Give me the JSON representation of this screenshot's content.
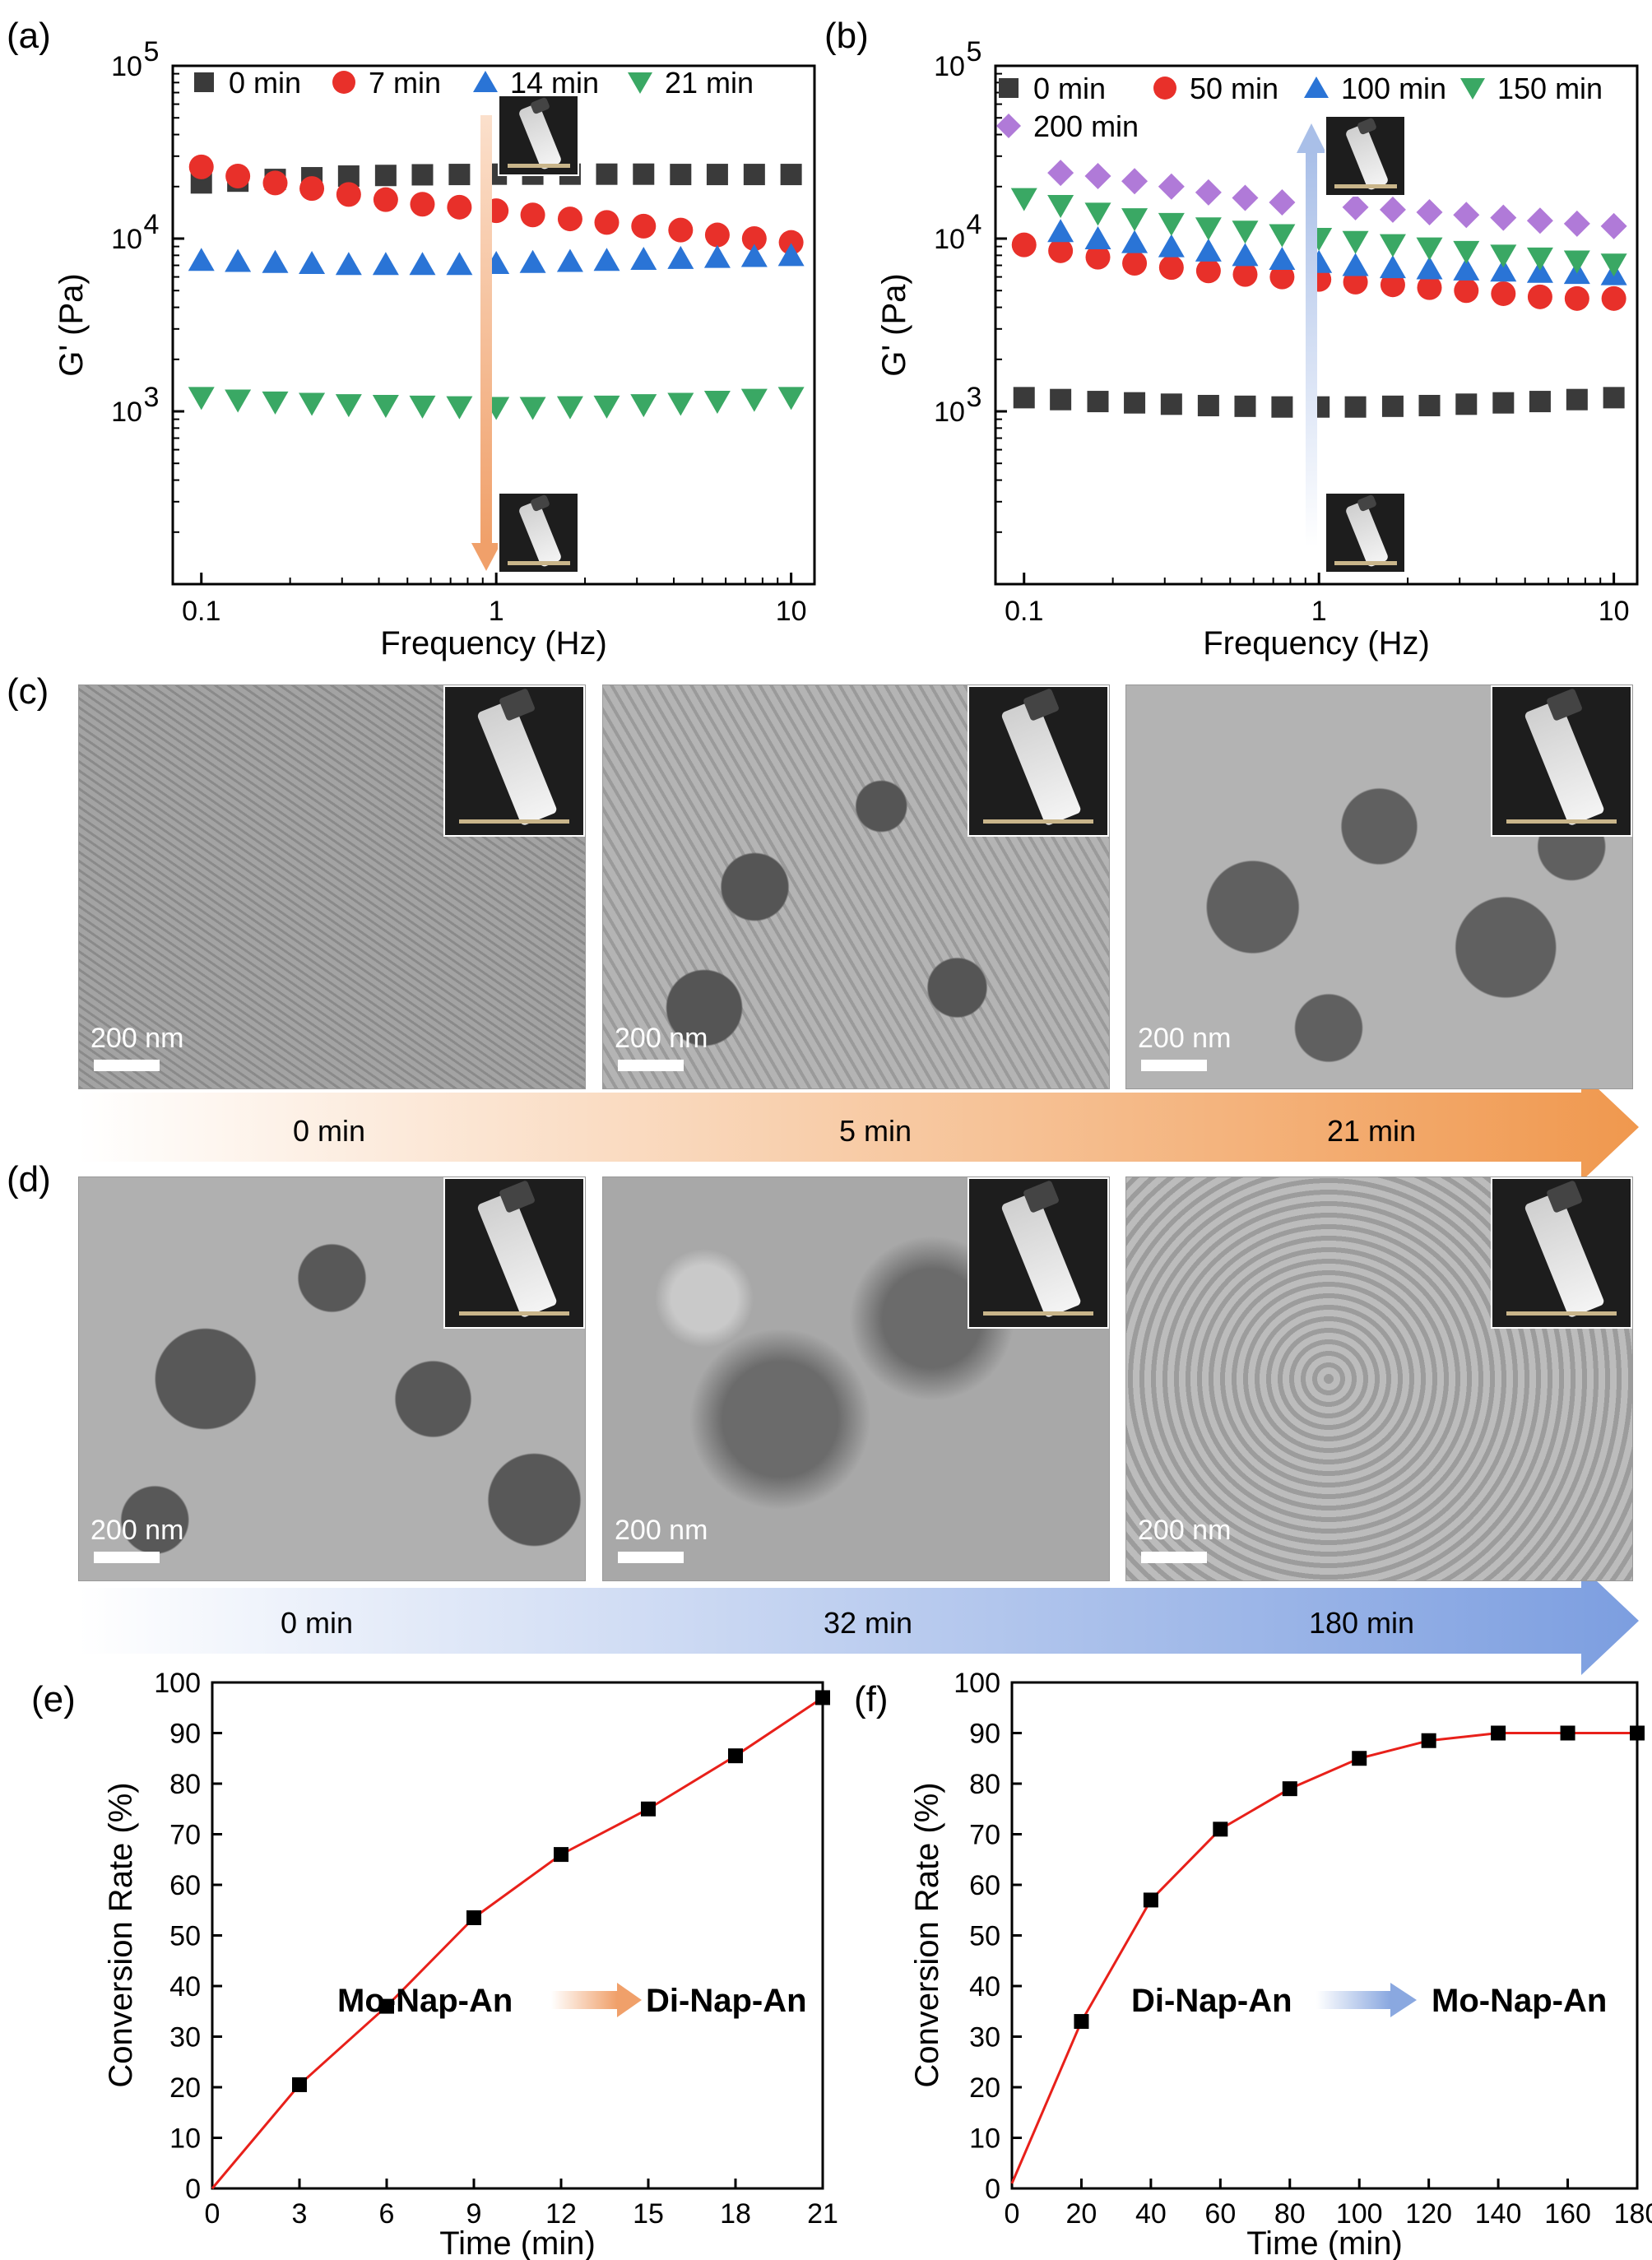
{
  "panels": {
    "a": {
      "letter": "(a)",
      "xlabel": "Frequency (Hz)",
      "ylabel": "G' (Pa)",
      "xticks": [
        "0.1",
        "1",
        "10"
      ],
      "yticks": [
        {
          "base": "10",
          "exp": "3"
        },
        {
          "base": "10",
          "exp": "4"
        },
        {
          "base": "10",
          "exp": "5"
        }
      ],
      "legend": [
        "0 min",
        "7 min",
        "14 min",
        "21 min"
      ]
    },
    "b": {
      "letter": "(b)",
      "xlabel": "Frequency (Hz)",
      "ylabel": "G' (Pa)",
      "xticks": [
        "0.1",
        "1",
        "10"
      ],
      "yticks": [
        {
          "base": "10",
          "exp": "3"
        },
        {
          "base": "10",
          "exp": "4"
        },
        {
          "base": "10",
          "exp": "5"
        }
      ],
      "legend": [
        "0 min",
        "50 min",
        "100 min",
        "150 min",
        "200 min"
      ]
    },
    "c": {
      "letter": "(c)",
      "scale": "200 nm",
      "timeline": [
        "0 min",
        "5 min",
        "21 min"
      ]
    },
    "d": {
      "letter": "(d)",
      "scale": "200 nm",
      "timeline": [
        "0 min",
        "32 min",
        "180 min"
      ]
    },
    "e": {
      "letter": "(e)",
      "xlabel": "Time (min)",
      "ylabel": "Conversion Rate (%)",
      "xticks": [
        "0",
        "3",
        "6",
        "9",
        "12",
        "15",
        "18",
        "21"
      ],
      "yticks": [
        "0",
        "10",
        "20",
        "30",
        "40",
        "50",
        "60",
        "70",
        "80",
        "90",
        "100"
      ],
      "annot_from": "Mo-Nap-An",
      "annot_to": "Di-Nap-An"
    },
    "f": {
      "letter": "(f)",
      "xlabel": "Time (min)",
      "ylabel": "Conversion Rate (%)",
      "xticks": [
        "0",
        "20",
        "40",
        "60",
        "80",
        "100",
        "120",
        "140",
        "160",
        "180"
      ],
      "yticks": [
        "0",
        "10",
        "20",
        "30",
        "40",
        "50",
        "60",
        "70",
        "80",
        "90",
        "100"
      ],
      "annot_from": "Di-Nap-An",
      "annot_to": "Mo-Nap-An"
    }
  },
  "colors": {
    "gray": "#3a3a3a",
    "red": "#e8302a",
    "blue": "#2a74d6",
    "green": "#3aa864",
    "purple": "#b07ad8",
    "orange_arrow": "#f0a06a",
    "blue_arrow": "#8aa8e0",
    "line_red": "#e8201a"
  },
  "chart_data": [
    {
      "panel": "a",
      "type": "scatter",
      "xscale": "log",
      "yscale": "log",
      "xlim": [
        0.08,
        12
      ],
      "ylim": [
        100,
        100000
      ],
      "x": [
        0.1,
        0.133,
        0.178,
        0.237,
        0.316,
        0.422,
        0.562,
        0.75,
        1.0,
        1.33,
        1.78,
        2.37,
        3.16,
        4.22,
        5.62,
        7.5,
        10.0
      ],
      "series": [
        {
          "name": "0 min",
          "marker": "square",
          "color": "#3a3a3a",
          "values": [
            21000,
            21500,
            22000,
            22500,
            23000,
            23200,
            23400,
            23500,
            23600,
            23600,
            23600,
            23600,
            23600,
            23500,
            23500,
            23500,
            23500
          ]
        },
        {
          "name": "7 min",
          "marker": "circle",
          "color": "#e8302a",
          "values": [
            26000,
            23000,
            21000,
            19500,
            18000,
            16800,
            15800,
            15200,
            14500,
            13700,
            13000,
            12400,
            11800,
            11200,
            10500,
            10000,
            9500
          ]
        },
        {
          "name": "14 min",
          "marker": "triangle-up",
          "color": "#2a74d6",
          "values": [
            7500,
            7400,
            7300,
            7200,
            7100,
            7100,
            7100,
            7100,
            7200,
            7300,
            7400,
            7500,
            7600,
            7700,
            7800,
            7900,
            8000
          ]
        },
        {
          "name": "21 min",
          "marker": "triangle-down",
          "color": "#3aa864",
          "values": [
            1200,
            1160,
            1130,
            1110,
            1090,
            1080,
            1070,
            1060,
            1050,
            1050,
            1060,
            1070,
            1090,
            1110,
            1140,
            1170,
            1200
          ]
        }
      ]
    },
    {
      "panel": "b",
      "type": "scatter",
      "xscale": "log",
      "yscale": "log",
      "xlim": [
        0.08,
        12
      ],
      "ylim": [
        100,
        100000
      ],
      "x": [
        0.1,
        0.133,
        0.178,
        0.237,
        0.316,
        0.422,
        0.562,
        0.75,
        1.0,
        1.33,
        1.78,
        2.37,
        3.16,
        4.22,
        5.62,
        7.5,
        10.0
      ],
      "series": [
        {
          "name": "0 min",
          "marker": "square",
          "color": "#3a3a3a",
          "values": [
            1200,
            1170,
            1140,
            1120,
            1100,
            1080,
            1070,
            1060,
            1060,
            1060,
            1070,
            1080,
            1100,
            1120,
            1140,
            1170,
            1200
          ]
        },
        {
          "name": "50 min",
          "marker": "circle",
          "color": "#e8302a",
          "values": [
            9200,
            8500,
            7800,
            7200,
            6800,
            6500,
            6200,
            6000,
            5800,
            5600,
            5400,
            5200,
            5000,
            4800,
            4600,
            4500,
            4500
          ]
        },
        {
          "name": "100 min",
          "marker": "triangle-up",
          "color": "#2a74d6",
          "values": [
            null,
            11000,
            10000,
            9500,
            9000,
            8500,
            8000,
            7600,
            7300,
            7000,
            6800,
            6700,
            6600,
            6500,
            6400,
            6300,
            6200
          ]
        },
        {
          "name": "150 min",
          "marker": "triangle-down",
          "color": "#3aa864",
          "values": [
            17000,
            15500,
            14000,
            13000,
            12200,
            11500,
            11000,
            10500,
            10000,
            9600,
            9200,
            8800,
            8400,
            8000,
            7700,
            7400,
            7100
          ]
        },
        {
          "name": "200 min",
          "marker": "diamond",
          "color": "#b07ad8",
          "values": [
            null,
            24000,
            23000,
            21500,
            20000,
            18500,
            17200,
            16200,
            null,
            15200,
            14700,
            14200,
            13700,
            13200,
            12700,
            12200,
            11800
          ]
        }
      ]
    },
    {
      "panel": "e",
      "type": "line",
      "xlim": [
        0,
        21
      ],
      "ylim": [
        0,
        100
      ],
      "x": [
        0,
        3,
        6,
        9,
        12,
        15,
        18,
        21
      ],
      "series": [
        {
          "values": [
            0,
            20.5,
            36,
            53.5,
            66,
            75,
            85.5,
            97
          ]
        }
      ]
    },
    {
      "panel": "f",
      "type": "line",
      "xlim": [
        0,
        180
      ],
      "ylim": [
        0,
        100
      ],
      "x": [
        0,
        20,
        40,
        60,
        80,
        100,
        120,
        140,
        160,
        180
      ],
      "series": [
        {
          "values": [
            1,
            33,
            57,
            71,
            79,
            85,
            88.5,
            90,
            90,
            90
          ]
        }
      ]
    }
  ]
}
